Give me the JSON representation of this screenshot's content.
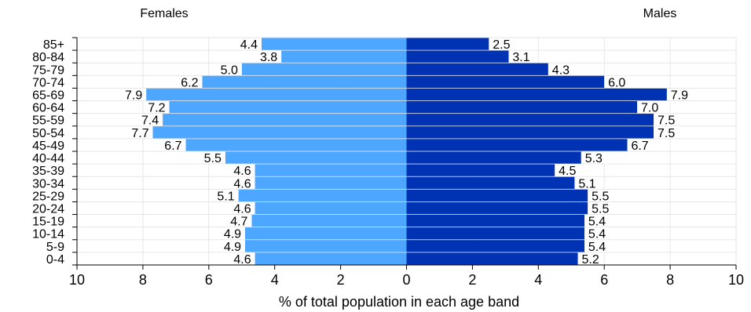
{
  "chart_data": {
    "type": "bar",
    "orientation": "horizontal",
    "layout": "population-pyramid",
    "title": "",
    "xlabel": "% of total population in each age band",
    "ylabel": "",
    "xlim": [
      -10,
      10
    ],
    "x_ticks": [
      10,
      8,
      6,
      4,
      2,
      0,
      2,
      4,
      6,
      8,
      10
    ],
    "grid": true,
    "categories": [
      "85+",
      "80-84",
      "75-79",
      "70-74",
      "65-69",
      "60-64",
      "55-59",
      "50-54",
      "45-49",
      "40-44",
      "35-39",
      "30-34",
      "25-29",
      "20-24",
      "15-19",
      "10-14",
      "5-9",
      "0-4"
    ],
    "series": [
      {
        "name": "Females",
        "side": "left",
        "color": "#4da6ff",
        "values": [
          4.4,
          3.8,
          5.0,
          6.2,
          7.9,
          7.2,
          7.4,
          7.7,
          6.7,
          5.5,
          4.6,
          4.6,
          5.1,
          4.6,
          4.7,
          4.9,
          4.9,
          4.6
        ],
        "labels": [
          "4.4",
          "3.8",
          "5.0",
          "6.2",
          "7.9",
          "7.2",
          "7.4",
          "7.7",
          "6.7",
          "5.5",
          "4.6",
          "4.6",
          "5.1",
          "4.6",
          "4.7",
          "4.9",
          "4.9",
          "4.6"
        ]
      },
      {
        "name": "Males",
        "side": "right",
        "color": "#0033b3",
        "values": [
          2.5,
          3.1,
          4.3,
          6.0,
          7.9,
          7.0,
          7.5,
          7.5,
          6.7,
          5.3,
          4.5,
          5.1,
          5.5,
          5.5,
          5.4,
          5.4,
          5.4,
          5.2
        ],
        "labels": [
          "2.5",
          "3.1",
          "4.3",
          "6.0",
          "7.9",
          "7.0",
          "7.5",
          "7.5",
          "6.7",
          "5.3",
          "4.5",
          "5.1",
          "5.5",
          "5.5",
          "5.4",
          "5.4",
          "5.4",
          "5.2"
        ]
      }
    ]
  }
}
